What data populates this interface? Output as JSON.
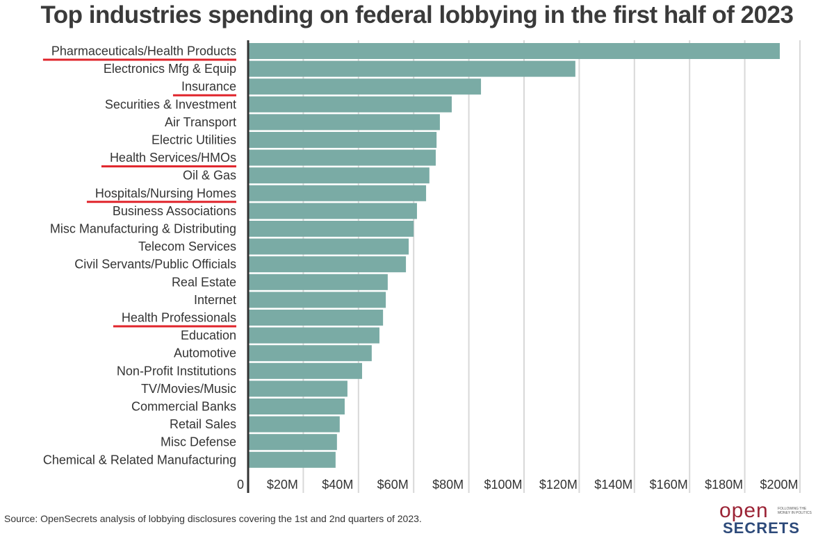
{
  "chart_data": {
    "type": "bar",
    "orientation": "horizontal",
    "title": "Top industries spending on federal lobbying in the first half of 2023",
    "categories": [
      "Pharmaceuticals/Health Products",
      "Electronics Mfg & Equip",
      "Insurance",
      "Securities & Investment",
      "Air Transport",
      "Electric Utilities",
      "Health Services/HMOs",
      "Oil & Gas",
      "Hospitals/Nursing Homes",
      "Business Associations",
      "Misc Manufacturing & Distributing",
      "Telecom Services",
      "Civil Servants/Public Officials",
      "Real Estate",
      "Internet",
      "Health Professionals",
      "Education",
      "Automotive",
      "Non-Profit Institutions",
      "TV/Movies/Music",
      "Commercial Banks",
      "Retail Sales",
      "Misc Defense",
      "Chemical & Related Manufacturing"
    ],
    "values": [
      192.7,
      118.6,
      84.4,
      73.8,
      69.5,
      68.3,
      68.0,
      65.7,
      64.5,
      61.2,
      60.0,
      58.2,
      57.2,
      50.6,
      49.9,
      48.9,
      47.6,
      44.8,
      41.3,
      36.0,
      35.0,
      33.2,
      32.2,
      31.7
    ],
    "units": "$M",
    "highlighted": [
      "Pharmaceuticals/Health Products",
      "Insurance",
      "Health Services/HMOs",
      "Hospitals/Nursing Homes",
      "Health Professionals"
    ],
    "xlim": [
      0,
      200
    ],
    "xticks": [
      0,
      20,
      40,
      60,
      80,
      100,
      120,
      140,
      160,
      180,
      200
    ],
    "xtick_labels": [
      "0",
      "$20M",
      "$40M",
      "$60M",
      "$80M",
      "$100M",
      "$120M",
      "$140M",
      "$160M",
      "$180M",
      "$200M"
    ],
    "grid": true,
    "bar_color": "#7aaba5",
    "highlight_color": "#e0242b"
  },
  "source": "Source: OpenSecrets analysis of lobbying disclosures covering the 1st and 2nd quarters of 2023.",
  "logo": {
    "open": "open",
    "secrets": "SECRETS",
    "tagline": "FOLLOWING THE MONEY IN POLITICS"
  }
}
